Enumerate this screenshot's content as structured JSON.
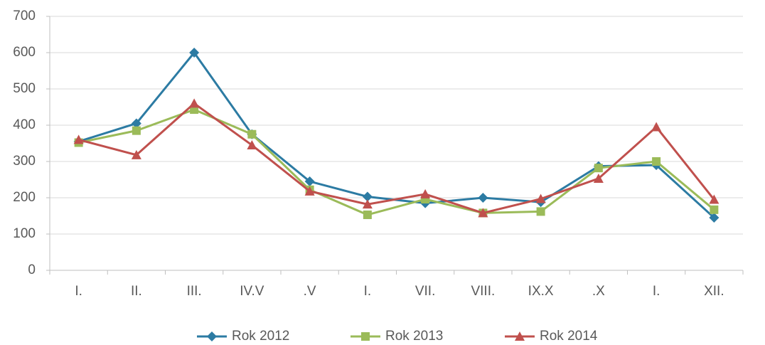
{
  "chart_data": {
    "type": "line",
    "categories": [
      "I.",
      "II.",
      "III.",
      "IV.V",
      ".V",
      "I.",
      "VII.",
      "VIII.",
      "IX.X",
      ".X",
      "I.",
      "XII."
    ],
    "series": [
      {
        "name": "Rok 2012",
        "color": "#2c7ba3",
        "marker": "diamond",
        "values": [
          355,
          405,
          600,
          375,
          245,
          203,
          185,
          200,
          188,
          287,
          290,
          145
        ]
      },
      {
        "name": "Rok 2013",
        "color": "#9bbb59",
        "marker": "square",
        "values": [
          352,
          385,
          443,
          375,
          222,
          153,
          196,
          158,
          162,
          282,
          300,
          167
        ]
      },
      {
        "name": "Rok 2014",
        "color": "#c0504d",
        "marker": "triangle",
        "values": [
          360,
          318,
          460,
          345,
          218,
          182,
          210,
          158,
          197,
          253,
          395,
          195
        ]
      }
    ],
    "ylim": [
      0,
      700
    ],
    "yticks": [
      0,
      100,
      200,
      300,
      400,
      500,
      600,
      700
    ],
    "grid": true,
    "legend": "bottom"
  }
}
